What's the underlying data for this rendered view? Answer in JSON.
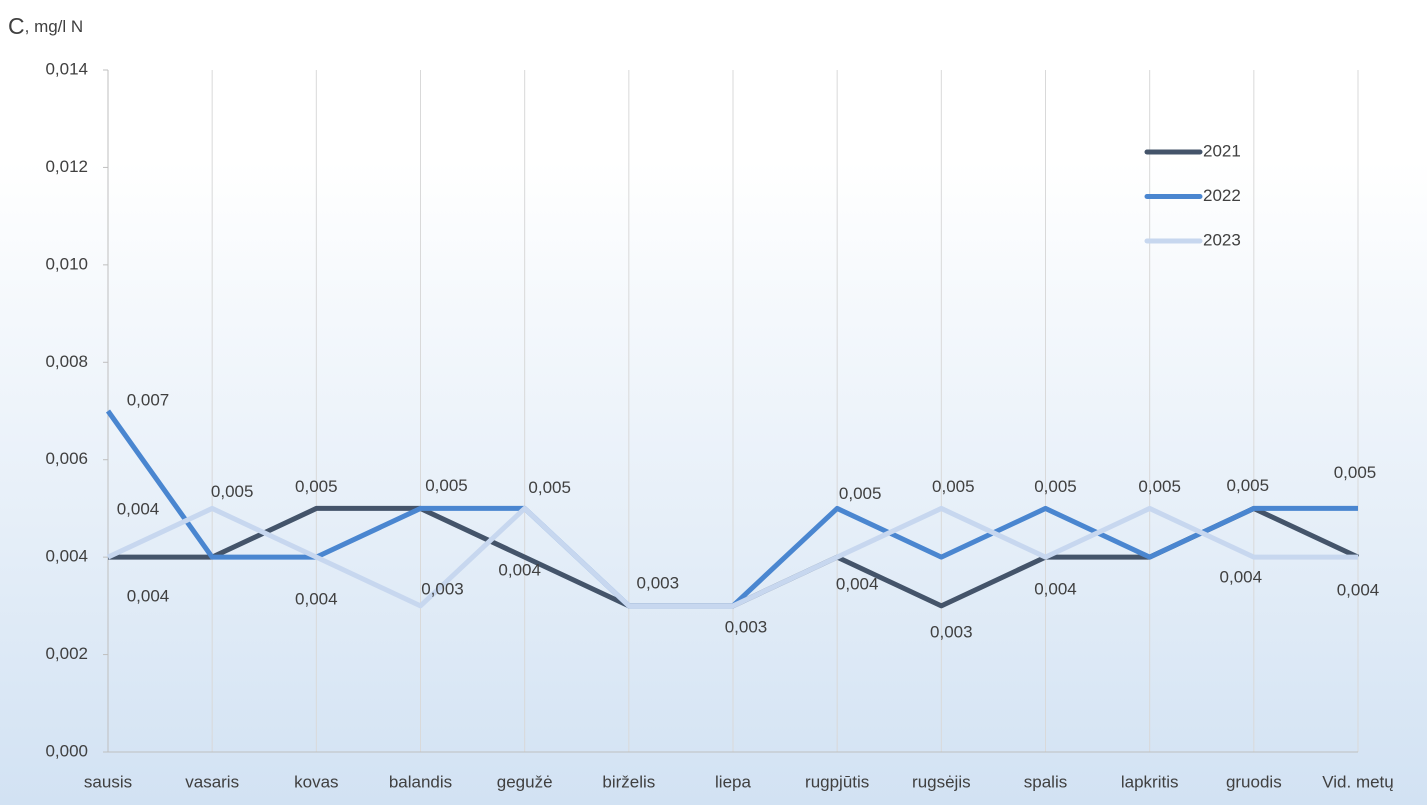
{
  "chart_data": {
    "type": "line",
    "y_label": "C, mg/l N",
    "categories": [
      "sausis",
      "vasaris",
      "kovas",
      "balandis",
      "gegužė",
      "birželis",
      "liepa",
      "rugpjūtis",
      "rugsėjis",
      "spalis",
      "lapkritis",
      "gruodis",
      "Vid. metų"
    ],
    "series": [
      {
        "name": "2021",
        "color": "#44546a",
        "values": [
          0.004,
          0.004,
          0.005,
          0.005,
          0.004,
          0.003,
          0.003,
          0.004,
          0.003,
          0.004,
          0.004,
          0.005,
          0.004
        ],
        "value_labels": [
          "0,004",
          null,
          "0,005",
          null,
          "0,004",
          null,
          "0,003",
          null,
          "0,003",
          null,
          null,
          null,
          "0,004"
        ]
      },
      {
        "name": "2022",
        "color": "#4a86d0",
        "values": [
          0.007,
          0.004,
          0.004,
          0.005,
          0.005,
          0.003,
          0.003,
          0.005,
          0.004,
          0.005,
          0.004,
          0.005,
          0.005
        ],
        "value_labels": [
          "0,007",
          null,
          null,
          "0,005",
          null,
          null,
          null,
          "0,005",
          null,
          "0,005",
          null,
          "0,005",
          "0,005"
        ]
      },
      {
        "name": "2023",
        "color": "#c7d7ef",
        "values": [
          0.004,
          0.005,
          0.004,
          0.003,
          0.005,
          0.003,
          0.003,
          0.004,
          0.005,
          0.004,
          0.005,
          0.004,
          0.004
        ],
        "value_labels": [
          "0,004",
          "0,005",
          "0,004",
          "0,003",
          "0,005",
          "0,003",
          null,
          "0,004",
          "0,005",
          "0,004",
          "0,005",
          "0,004",
          null
        ]
      }
    ],
    "ylim": [
      0,
      0.014
    ],
    "yticks": [
      {
        "value": 0,
        "label": "0,000"
      },
      {
        "value": 0.002,
        "label": "0,002"
      },
      {
        "value": 0.004,
        "label": "0,004"
      },
      {
        "value": 0.006,
        "label": "0,006"
      },
      {
        "value": 0.008,
        "label": "0,008"
      },
      {
        "value": 0.01,
        "label": "0,010"
      },
      {
        "value": 0.012,
        "label": "0,012"
      },
      {
        "value": 0.014,
        "label": "0,014"
      }
    ],
    "grid": true,
    "legend": "upper right"
  }
}
